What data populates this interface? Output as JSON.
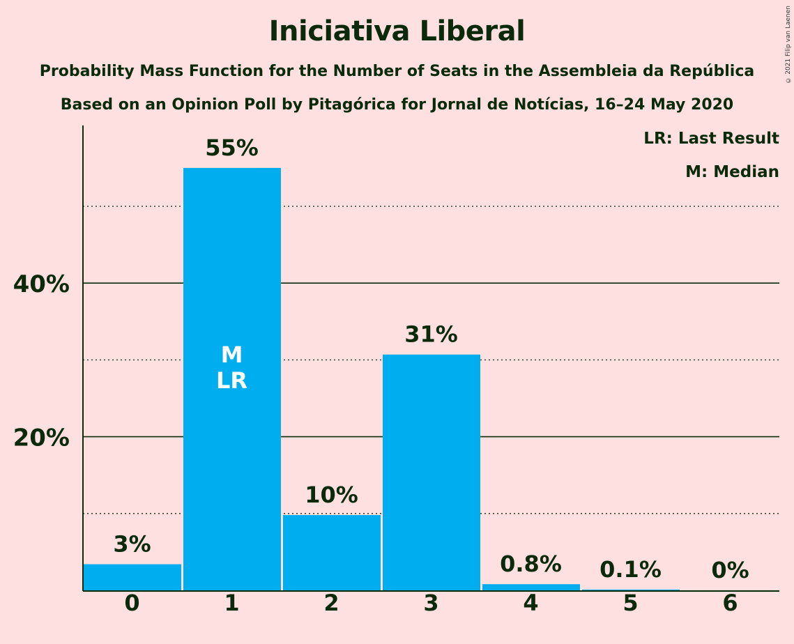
{
  "title": "Iniciativa Liberal",
  "subtitle_1": "Probability Mass Function for the Number of Seats in the Assembleia da República",
  "subtitle_2": "Based on an Opinion Poll by Pitagórica for Jornal de Notícias, 16–24 May 2020",
  "copyright": "© 2021 Filip van Laenen",
  "legend": {
    "last_result": "LR: Last Result",
    "median": "M: Median"
  },
  "colors": {
    "background": "#FFE0E0",
    "bar": "#00AEEF",
    "text": "#0B2A0B"
  },
  "chart_data": {
    "type": "bar",
    "categories": [
      "0",
      "1",
      "2",
      "3",
      "4",
      "5",
      "6"
    ],
    "values": [
      3.4,
      55,
      9.8,
      30.7,
      0.8,
      0.1,
      0
    ],
    "value_labels": [
      "3%",
      "55%",
      "10%",
      "31%",
      "0.8%",
      "0.1%",
      "0%"
    ],
    "bar_markers": [
      {
        "category": "1",
        "labels": [
          "M",
          "LR"
        ]
      }
    ],
    "yticks": [
      {
        "value": 20,
        "label": "20%"
      },
      {
        "value": 40,
        "label": "40%"
      }
    ],
    "minor_gridlines": [
      10,
      30,
      50
    ],
    "ylim": [
      0,
      60
    ],
    "xlabel": "",
    "ylabel": ""
  }
}
